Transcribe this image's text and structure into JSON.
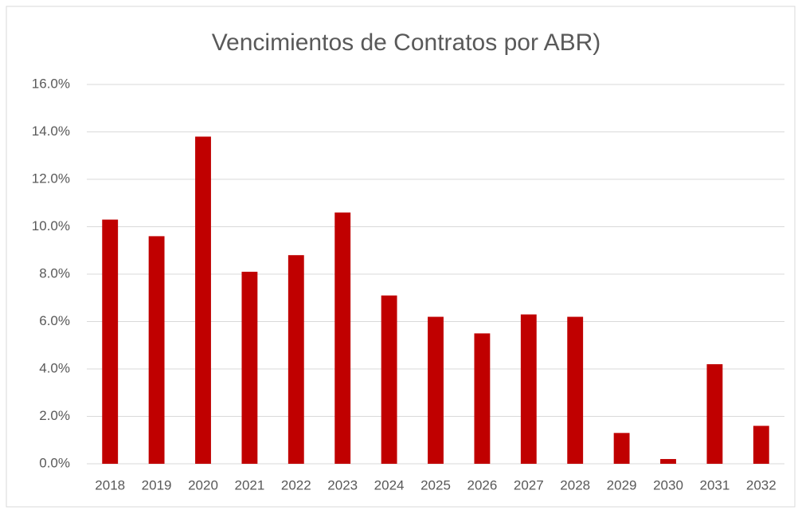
{
  "chart_data": {
    "type": "bar",
    "title": "Vencimientos de Contratos por ABR)",
    "categories": [
      "2018",
      "2019",
      "2020",
      "2021",
      "2022",
      "2023",
      "2024",
      "2025",
      "2026",
      "2027",
      "2028",
      "2029",
      "2030",
      "2031",
      "2032"
    ],
    "values": [
      10.3,
      9.6,
      13.8,
      8.1,
      8.8,
      10.6,
      7.1,
      6.2,
      5.5,
      6.3,
      6.2,
      1.3,
      0.2,
      4.2,
      1.6
    ],
    "color": "#c00000",
    "ylim": [
      0,
      16
    ],
    "yticks": [
      {
        "value": 0,
        "label": "0.0%"
      },
      {
        "value": 2,
        "label": "2.0%"
      },
      {
        "value": 4,
        "label": "4.0%"
      },
      {
        "value": 6,
        "label": "6.0%"
      },
      {
        "value": 8,
        "label": "8.0%"
      },
      {
        "value": 10,
        "label": "10.0%"
      },
      {
        "value": 12,
        "label": "12.0%"
      },
      {
        "value": 14,
        "label": "14.0%"
      },
      {
        "value": 16,
        "label": "16.0%"
      }
    ],
    "grid": true
  }
}
